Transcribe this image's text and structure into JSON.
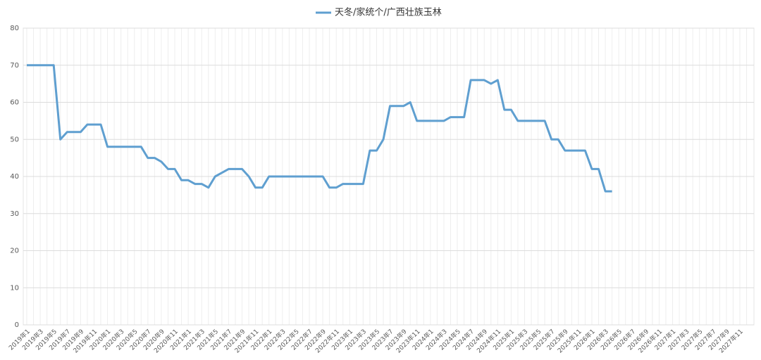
{
  "chart_data": {
    "type": "line",
    "categories": [
      "2019年1",
      null,
      "2019年3",
      null,
      "2019年5",
      null,
      "2019年7",
      null,
      "2019年9",
      null,
      "2019年11",
      null,
      "2020年1",
      null,
      "2020年3",
      null,
      "2020年5",
      null,
      "2020年7",
      null,
      "2020年9",
      null,
      "2020年11",
      null,
      "2021年1",
      null,
      "2021年3",
      null,
      "2021年5",
      null,
      "2021年7",
      null,
      "2021年9",
      null,
      "2021年11",
      null,
      "2022年1",
      null,
      "2022年3",
      null,
      "2022年5",
      null,
      "2022年7",
      null,
      "2022年9",
      null,
      "2022年11",
      null,
      "2023年1",
      null,
      "2023年3",
      null,
      "2023年5",
      null,
      "2023年7",
      null,
      "2023年9",
      null,
      "2023年11",
      null,
      "2024年1",
      null,
      "2024年3",
      null,
      "2024年5",
      null,
      "2024年7",
      null,
      "2024年9",
      null,
      "2024年11",
      null,
      "2025年1",
      null,
      "2025年3",
      null,
      "2025年5",
      null,
      "2025年7",
      null,
      "2025年9",
      null,
      "2025年11",
      null,
      "2026年1",
      null,
      "2026年3",
      null,
      "2026年5",
      null,
      "2026年7",
      null,
      "2026年9",
      null,
      "2026年11",
      null,
      "2027年1",
      null,
      "2027年3",
      null,
      "2027年5",
      null,
      "2027年7",
      null,
      "2027年9",
      null,
      "2027年11",
      null
    ],
    "series": [
      {
        "name": "天冬/家统个/广西壮族玉林",
        "color": "#5f9fd0",
        "values": [
          70,
          70,
          70,
          70,
          70,
          50,
          52,
          52,
          52,
          54,
          54,
          54,
          48,
          48,
          48,
          48,
          48,
          48,
          45,
          45,
          44,
          42,
          42,
          39,
          39,
          38,
          38,
          37,
          40,
          41,
          42,
          42,
          42,
          40,
          37,
          37,
          40,
          40,
          40,
          40,
          40,
          40,
          40,
          40,
          40,
          37,
          37,
          38,
          38,
          38,
          38,
          47,
          47,
          50,
          59,
          59,
          59,
          60,
          55,
          55,
          55,
          55,
          55,
          56,
          56,
          56,
          66,
          66,
          66,
          65,
          66,
          58,
          58,
          55,
          55,
          55,
          55,
          55,
          50,
          50,
          47,
          47,
          47,
          47,
          42,
          42,
          36,
          36,
          null,
          null,
          null,
          null,
          null,
          null,
          null,
          null,
          null,
          null,
          null,
          null,
          null,
          null,
          null,
          null,
          null,
          null,
          null,
          null
        ]
      }
    ],
    "ylim": [
      0,
      80
    ],
    "yticks": [
      0,
      10,
      20,
      30,
      40,
      50,
      60,
      70,
      80
    ],
    "grid": true,
    "legend": "top"
  }
}
